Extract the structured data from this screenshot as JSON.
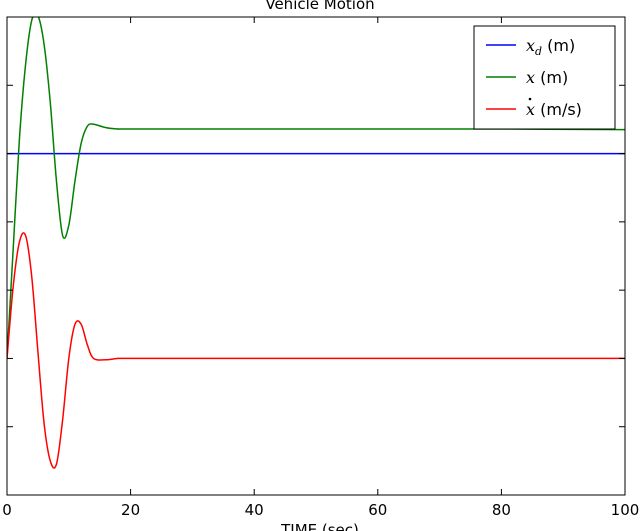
{
  "chart_data": {
    "type": "line",
    "title": "Vehicle Motion",
    "xlabel": "TIME (sec)",
    "ylabel": "",
    "xlim": [
      0,
      100
    ],
    "ylim": [
      -2,
      5
    ],
    "xticks": [
      0,
      20,
      40,
      60,
      80,
      100
    ],
    "xtick_labels": [
      "0",
      "20",
      "40",
      "60",
      "80",
      "100"
    ],
    "yticks": [
      -2,
      -1,
      0,
      1,
      2,
      3,
      4,
      5
    ],
    "grid": false,
    "legend_position": "top-right",
    "x": [
      0,
      1,
      2,
      3,
      4,
      5,
      6,
      7,
      8,
      9,
      10,
      11,
      12,
      13,
      14,
      16,
      18,
      20,
      40,
      60,
      80,
      100
    ],
    "series": [
      {
        "name_prefix": "x_d",
        "name_suffix": " (m)",
        "color": "#0000ff",
        "values": [
          3.0,
          3.0,
          3.0,
          3.0,
          3.0,
          3.0,
          3.0,
          3.0,
          3.0,
          3.0,
          3.0,
          3.0,
          3.0,
          3.0,
          3.0,
          3.0,
          3.0,
          3.0,
          3.0,
          3.0,
          3.0,
          3.0
        ]
      },
      {
        "name_prefix": "x",
        "name_suffix": " (m)",
        "color": "#008000",
        "values": [
          0.0,
          1.6,
          3.2,
          4.3,
          4.95,
          5.02,
          4.6,
          3.75,
          2.6,
          1.8,
          1.95,
          2.6,
          3.15,
          3.4,
          3.43,
          3.38,
          3.36,
          3.36,
          3.36,
          3.36,
          3.36,
          3.35
        ]
      },
      {
        "name_prefix": "x-dot",
        "name_suffix": " (m/s)",
        "color": "#ff0000",
        "values": [
          0.0,
          1.05,
          1.7,
          1.8,
          1.2,
          0.1,
          -0.95,
          -1.5,
          -1.55,
          -0.9,
          0.0,
          0.5,
          0.5,
          0.2,
          0.0,
          -0.02,
          0.0,
          0.0,
          0.0,
          0.0,
          0.0,
          0.0
        ]
      }
    ]
  }
}
